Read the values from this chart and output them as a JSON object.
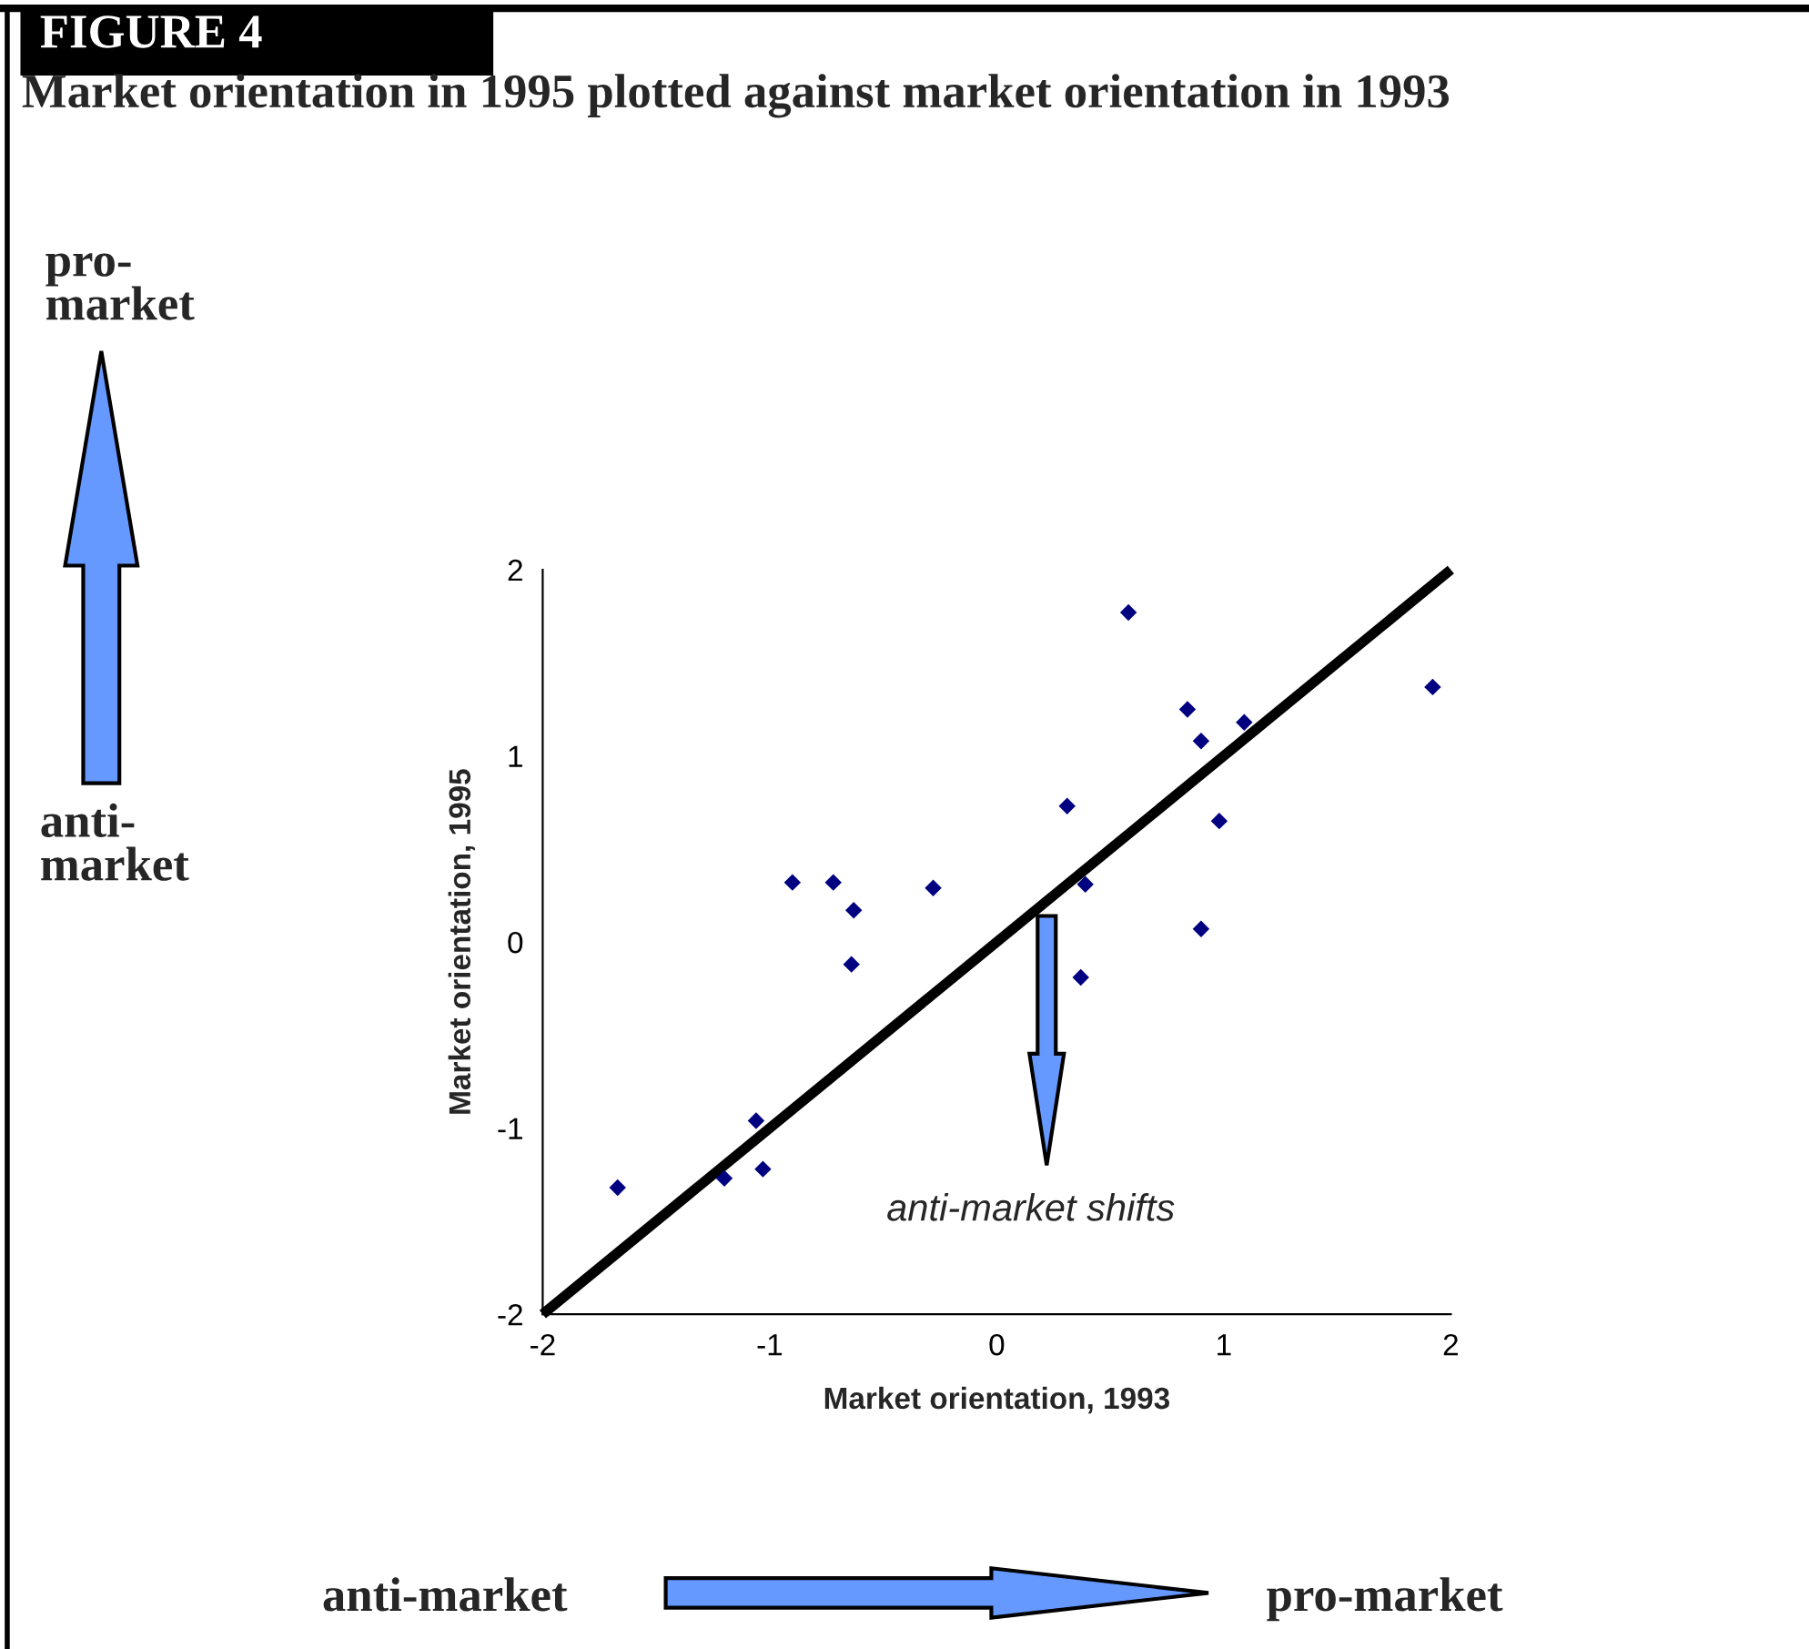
{
  "chart_data": {
    "type": "scatter",
    "title": "Market orientation in 1995 plotted against market orientation in 1993",
    "xlabel": "Market orientation, 1993",
    "ylabel": "Market orientation, 1995",
    "annotations": [
      "FIGURE 4",
      "pro-\nmarket",
      "anti-\nmarket",
      "anti-market",
      "pro-market",
      "anti-market shifts"
    ],
    "series": [
      {
        "color": "#000080",
        "marker": "diamond",
        "x": [
          -1.67,
          -1.2,
          -1.06,
          -1.03,
          -0.9,
          -0.72,
          -0.63,
          -0.64,
          -0.28,
          0.31,
          0.39,
          0.37,
          0.58,
          0.84,
          0.9,
          1.09,
          0.98,
          0.9,
          1.92
        ],
        "values": [
          -1.32,
          -1.27,
          -0.96,
          -1.22,
          0.32,
          0.32,
          0.17,
          -0.12,
          0.29,
          0.73,
          0.31,
          -0.19,
          1.77,
          1.25,
          1.08,
          1.18,
          0.65,
          0.07,
          1.37
        ]
      },
      {
        "type": "line",
        "color": "#000000",
        "x": [
          -2,
          2
        ],
        "values": [
          -2,
          2
        ]
      }
    ],
    "xlim": [
      -2,
      2
    ],
    "ylim": [
      -2,
      2
    ],
    "xticks": [
      {
        "value": -2,
        "label": "-2"
      },
      {
        "value": -1,
        "label": "-1"
      },
      0,
      1,
      2
    ],
    "yticks": [
      {
        "value": -2,
        "label": "-2"
      },
      {
        "value": -1,
        "label": "-1"
      },
      0,
      1,
      2
    ],
    "grid": false,
    "legend": false
  }
}
